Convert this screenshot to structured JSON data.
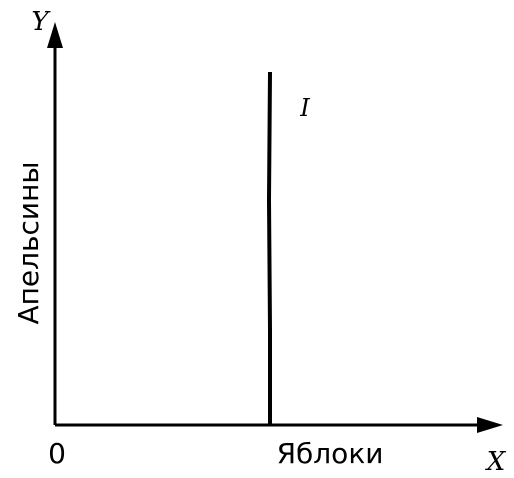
{
  "axes": {
    "y_symbol": "Y",
    "x_symbol": "X",
    "origin": "0"
  },
  "y_axis_title": "Апельсины",
  "x_axis_title": "Яблоки",
  "line_label": "I"
}
